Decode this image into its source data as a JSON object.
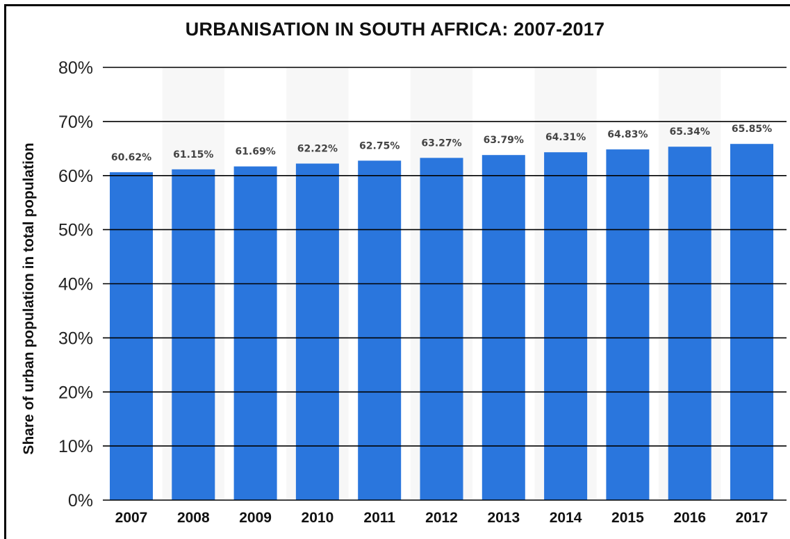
{
  "chart_data": {
    "type": "bar",
    "title": "URBANISATION IN SOUTH AFRICA: 2007-2017",
    "xlabel": "",
    "ylabel": "Share of urban population in total population",
    "categories": [
      "2007",
      "2008",
      "2009",
      "2010",
      "2011",
      "2012",
      "2013",
      "2014",
      "2015",
      "2016",
      "2017"
    ],
    "values": [
      60.62,
      61.15,
      61.69,
      62.22,
      62.75,
      63.27,
      63.79,
      64.31,
      64.83,
      65.34,
      65.85
    ],
    "value_labels": [
      "60.62%",
      "61.15%",
      "61.69%",
      "62.22%",
      "62.75%",
      "63.27%",
      "63.79%",
      "64.31%",
      "64.83%",
      "65.34%",
      "65.85%"
    ],
    "ylim": [
      0,
      80
    ],
    "yticks": [
      0,
      10,
      20,
      30,
      40,
      50,
      60,
      70,
      80
    ],
    "ytick_labels": [
      "0%",
      "10%",
      "20%",
      "30%",
      "40%",
      "50%",
      "60%",
      "70%",
      "80%"
    ],
    "grid": true,
    "bar_color": "#2a76dd",
    "grid_color": "#000000"
  }
}
